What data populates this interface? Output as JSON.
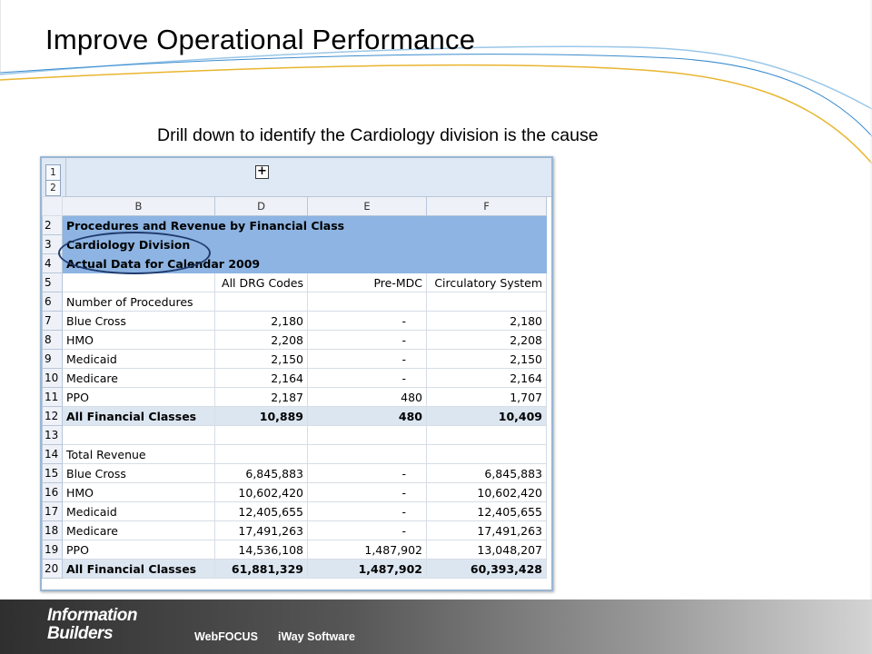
{
  "slide": {
    "title": "Improve Operational Performance",
    "subtitle": "Drill down to identify the Cardiology division is the cause"
  },
  "sheet": {
    "outline_levels": [
      "1",
      "2"
    ],
    "expand_symbol": "+",
    "column_headers": [
      "B",
      "D",
      "E",
      "F"
    ],
    "rows": [
      {
        "row": "2",
        "b": "Procedures and Revenue by Financial Class",
        "d": "",
        "e": "",
        "f": "",
        "style": "blue"
      },
      {
        "row": "3",
        "b": "Cardiology Division",
        "d": "",
        "e": "",
        "f": "",
        "style": "blue"
      },
      {
        "row": "4",
        "b": "Actual Data for Calendar 2009",
        "d": "",
        "e": "",
        "f": "",
        "style": "blue"
      },
      {
        "row": "5",
        "b": "",
        "d": "All DRG Codes",
        "e": "Pre-MDC",
        "f": "Circulatory System",
        "style": "header"
      },
      {
        "row": "6",
        "b": "Number of Procedures",
        "d": "",
        "e": "",
        "f": "",
        "style": "section"
      },
      {
        "row": "7",
        "b": "Blue Cross",
        "d": "2,180",
        "e": "-",
        "f": "2,180",
        "style": ""
      },
      {
        "row": "8",
        "b": "HMO",
        "d": "2,208",
        "e": "-",
        "f": "2,208",
        "style": ""
      },
      {
        "row": "9",
        "b": "Medicaid",
        "d": "2,150",
        "e": "-",
        "f": "2,150",
        "style": ""
      },
      {
        "row": "10",
        "b": "Medicare",
        "d": "2,164",
        "e": "-",
        "f": "2,164",
        "style": ""
      },
      {
        "row": "11",
        "b": "PPO",
        "d": "2,187",
        "e": "480",
        "f": "1,707",
        "style": ""
      },
      {
        "row": "12",
        "b": "All Financial Classes",
        "d": "10,889",
        "e": "480",
        "f": "10,409",
        "style": "total"
      },
      {
        "row": "13",
        "b": "",
        "d": "",
        "e": "",
        "f": "",
        "style": ""
      },
      {
        "row": "14",
        "b": "Total Revenue",
        "d": "",
        "e": "",
        "f": "",
        "style": "section"
      },
      {
        "row": "15",
        "b": "Blue Cross",
        "d": "6,845,883",
        "e": "-",
        "f": "6,845,883",
        "style": ""
      },
      {
        "row": "16",
        "b": "HMO",
        "d": "10,602,420",
        "e": "-",
        "f": "10,602,420",
        "style": ""
      },
      {
        "row": "17",
        "b": "Medicaid",
        "d": "12,405,655",
        "e": "-",
        "f": "12,405,655",
        "style": ""
      },
      {
        "row": "18",
        "b": "Medicare",
        "d": "17,491,263",
        "e": "-",
        "f": "17,491,263",
        "style": ""
      },
      {
        "row": "19",
        "b": "PPO",
        "d": "14,536,108",
        "e": "1,487,902",
        "f": "13,048,207",
        "style": ""
      },
      {
        "row": "20",
        "b": "All Financial Classes",
        "d": "61,881,329",
        "e": "1,487,902",
        "f": "60,393,428",
        "style": "total"
      }
    ]
  },
  "footer": {
    "logo_line1": "Information",
    "logo_line2": "Builders",
    "products": [
      "WebFOCUS",
      "iWay Software"
    ]
  }
}
